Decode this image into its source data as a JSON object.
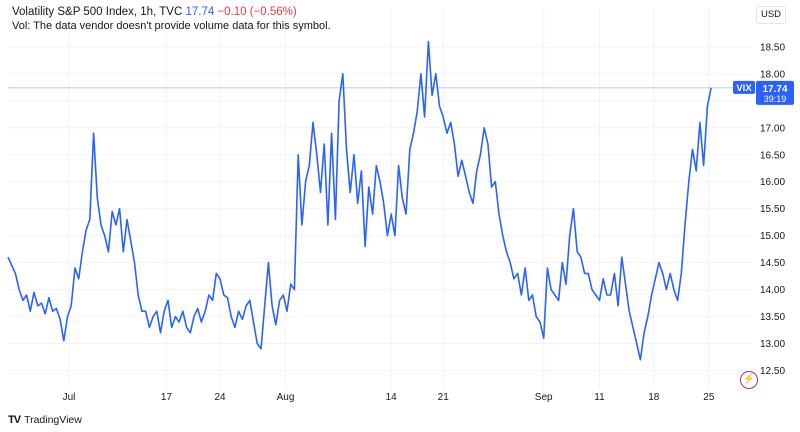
{
  "header": {
    "symbol_name": "Volatility S&P 500 Index, 1h, TVC",
    "last_value": "17.74",
    "change": "−0.10 (−0.56%)",
    "volume_note": "Vol: The data vendor doesn't provide volume data for this symbol.",
    "currency": "USD"
  },
  "price_tag": {
    "ticker": "VIX",
    "value": "17.74",
    "countdown": "39:19"
  },
  "footer": {
    "brand": "TradingView"
  },
  "chart_data": {
    "type": "line",
    "title": "Volatility S&P 500 Index, 1h, TVC",
    "y_ticks": [
      "18.50",
      "18.00",
      "17.50",
      "17.00",
      "16.50",
      "16.00",
      "15.50",
      "15.00",
      "14.50",
      "14.00",
      "13.50",
      "13.00",
      "12.50"
    ],
    "x_ticks": [
      "Jul",
      "17",
      "24",
      "Aug",
      "14",
      "21",
      "Sep",
      "11",
      "18",
      "25"
    ],
    "ylim": [
      12.25,
      18.85
    ],
    "x_range": [
      0,
      100
    ],
    "x_tick_positions": [
      8.2,
      21.3,
      28.5,
      37.3,
      51.5,
      58.5,
      72.0,
      79.5,
      86.8,
      94.2
    ],
    "grid": true,
    "last_price_line": 17.74,
    "colors": {
      "line": "#2962ff",
      "grid": "#f0f3fa",
      "price_tag": "#2962ff"
    },
    "series": [
      {
        "values": [
          [
            0.0,
            14.6
          ],
          [
            0.5,
            14.45
          ],
          [
            1.0,
            14.3
          ],
          [
            1.5,
            14.0
          ],
          [
            2.0,
            13.8
          ],
          [
            2.5,
            13.9
          ],
          [
            3.0,
            13.6
          ],
          [
            3.5,
            13.95
          ],
          [
            4.0,
            13.7
          ],
          [
            4.5,
            13.75
          ],
          [
            5.0,
            13.55
          ],
          [
            5.5,
            13.85
          ],
          [
            6.0,
            13.6
          ],
          [
            6.5,
            13.65
          ],
          [
            7.0,
            13.45
          ],
          [
            7.5,
            13.05
          ],
          [
            8.0,
            13.5
          ],
          [
            8.5,
            13.7
          ],
          [
            9.0,
            14.4
          ],
          [
            9.5,
            14.2
          ],
          [
            10.0,
            14.7
          ],
          [
            10.5,
            15.1
          ],
          [
            11.0,
            15.3
          ],
          [
            11.5,
            16.9
          ],
          [
            12.0,
            15.7
          ],
          [
            12.5,
            15.2
          ],
          [
            13.0,
            15.0
          ],
          [
            13.5,
            14.7
          ],
          [
            14.0,
            15.45
          ],
          [
            14.5,
            15.2
          ],
          [
            15.0,
            15.5
          ],
          [
            15.5,
            14.7
          ],
          [
            16.0,
            15.3
          ],
          [
            16.5,
            14.9
          ],
          [
            17.0,
            14.5
          ],
          [
            17.5,
            13.9
          ],
          [
            18.0,
            13.6
          ],
          [
            18.5,
            13.6
          ],
          [
            19.0,
            13.3
          ],
          [
            19.5,
            13.5
          ],
          [
            20.0,
            13.6
          ],
          [
            20.5,
            13.2
          ],
          [
            21.0,
            13.6
          ],
          [
            21.5,
            13.8
          ],
          [
            22.0,
            13.3
          ],
          [
            22.5,
            13.5
          ],
          [
            23.0,
            13.4
          ],
          [
            23.5,
            13.6
          ],
          [
            24.0,
            13.3
          ],
          [
            24.5,
            13.2
          ],
          [
            25.0,
            13.5
          ],
          [
            25.5,
            13.65
          ],
          [
            26.0,
            13.4
          ],
          [
            26.5,
            13.6
          ],
          [
            27.0,
            13.9
          ],
          [
            27.5,
            13.8
          ],
          [
            28.0,
            14.3
          ],
          [
            28.5,
            14.2
          ],
          [
            29.0,
            13.9
          ],
          [
            29.5,
            13.85
          ],
          [
            30.0,
            13.5
          ],
          [
            30.5,
            13.3
          ],
          [
            31.0,
            13.6
          ],
          [
            31.5,
            13.45
          ],
          [
            32.0,
            13.7
          ],
          [
            32.5,
            13.8
          ],
          [
            33.0,
            13.4
          ],
          [
            33.5,
            13.0
          ],
          [
            34.0,
            12.9
          ],
          [
            34.5,
            13.7
          ],
          [
            35.0,
            14.5
          ],
          [
            35.5,
            13.7
          ],
          [
            36.0,
            13.35
          ],
          [
            36.5,
            13.8
          ],
          [
            37.0,
            13.9
          ],
          [
            37.5,
            13.6
          ],
          [
            38.0,
            14.1
          ],
          [
            38.5,
            14.0
          ],
          [
            39.0,
            16.5
          ],
          [
            39.5,
            15.2
          ],
          [
            40.0,
            16.0
          ],
          [
            40.5,
            16.3
          ],
          [
            41.0,
            17.1
          ],
          [
            41.5,
            16.5
          ],
          [
            42.0,
            15.8
          ],
          [
            42.5,
            16.7
          ],
          [
            43.0,
            15.2
          ],
          [
            43.5,
            16.9
          ],
          [
            44.0,
            15.3
          ],
          [
            44.5,
            17.5
          ],
          [
            45.0,
            18.0
          ],
          [
            45.5,
            16.6
          ],
          [
            46.0,
            15.8
          ],
          [
            46.5,
            16.5
          ],
          [
            47.0,
            15.6
          ],
          [
            47.5,
            16.2
          ],
          [
            48.0,
            14.8
          ],
          [
            48.5,
            15.9
          ],
          [
            49.0,
            15.4
          ],
          [
            49.5,
            16.3
          ],
          [
            50.0,
            16.0
          ],
          [
            50.5,
            15.6
          ],
          [
            51.0,
            15.0
          ],
          [
            51.5,
            15.4
          ],
          [
            52.0,
            15.0
          ],
          [
            52.5,
            16.3
          ],
          [
            53.0,
            15.7
          ],
          [
            53.5,
            15.4
          ],
          [
            54.0,
            16.6
          ],
          [
            54.5,
            16.9
          ],
          [
            55.0,
            17.3
          ],
          [
            55.5,
            18.0
          ],
          [
            56.0,
            17.2
          ],
          [
            56.5,
            18.6
          ],
          [
            57.0,
            17.6
          ],
          [
            57.5,
            18.0
          ],
          [
            58.0,
            17.4
          ],
          [
            58.5,
            17.2
          ],
          [
            59.0,
            16.9
          ],
          [
            59.5,
            17.1
          ],
          [
            60.0,
            16.7
          ],
          [
            60.5,
            16.1
          ],
          [
            61.0,
            16.4
          ],
          [
            61.5,
            16.1
          ],
          [
            62.0,
            15.8
          ],
          [
            62.5,
            15.6
          ],
          [
            63.0,
            16.2
          ],
          [
            63.5,
            16.5
          ],
          [
            64.0,
            17.0
          ],
          [
            64.5,
            16.7
          ],
          [
            65.0,
            15.9
          ],
          [
            65.5,
            16.0
          ],
          [
            66.0,
            15.4
          ],
          [
            66.5,
            15.0
          ],
          [
            67.0,
            14.7
          ],
          [
            67.5,
            14.5
          ],
          [
            68.0,
            14.2
          ],
          [
            68.5,
            14.3
          ],
          [
            69.0,
            13.9
          ],
          [
            69.5,
            14.4
          ],
          [
            70.0,
            13.8
          ],
          [
            70.5,
            13.9
          ],
          [
            71.0,
            13.5
          ],
          [
            71.5,
            13.4
          ],
          [
            72.0,
            13.1
          ],
          [
            72.5,
            14.4
          ],
          [
            73.0,
            14.0
          ],
          [
            73.5,
            13.9
          ],
          [
            74.0,
            13.8
          ],
          [
            74.5,
            14.5
          ],
          [
            75.0,
            14.1
          ],
          [
            75.5,
            15.0
          ],
          [
            76.0,
            15.5
          ],
          [
            76.5,
            14.7
          ],
          [
            77.0,
            14.6
          ],
          [
            77.5,
            14.3
          ],
          [
            78.0,
            14.3
          ],
          [
            78.5,
            14.0
          ],
          [
            79.0,
            13.9
          ],
          [
            79.5,
            13.8
          ],
          [
            80.0,
            14.2
          ],
          [
            80.5,
            13.9
          ],
          [
            81.0,
            13.9
          ],
          [
            81.5,
            14.3
          ],
          [
            82.0,
            13.7
          ],
          [
            82.5,
            14.6
          ],
          [
            83.0,
            14.1
          ],
          [
            83.5,
            13.6
          ],
          [
            84.0,
            13.3
          ],
          [
            84.5,
            13.0
          ],
          [
            85.0,
            12.7
          ],
          [
            85.5,
            13.2
          ],
          [
            86.0,
            13.5
          ],
          [
            86.5,
            13.9
          ],
          [
            87.0,
            14.2
          ],
          [
            87.5,
            14.5
          ],
          [
            88.0,
            14.3
          ],
          [
            88.5,
            14.0
          ],
          [
            89.0,
            14.3
          ],
          [
            89.5,
            14.0
          ],
          [
            90.0,
            13.8
          ],
          [
            90.5,
            14.3
          ],
          [
            91.0,
            15.2
          ],
          [
            91.5,
            16.0
          ],
          [
            92.0,
            16.6
          ],
          [
            92.5,
            16.2
          ],
          [
            93.0,
            17.1
          ],
          [
            93.5,
            16.3
          ],
          [
            94.0,
            17.4
          ],
          [
            94.5,
            17.74
          ]
        ]
      }
    ]
  }
}
